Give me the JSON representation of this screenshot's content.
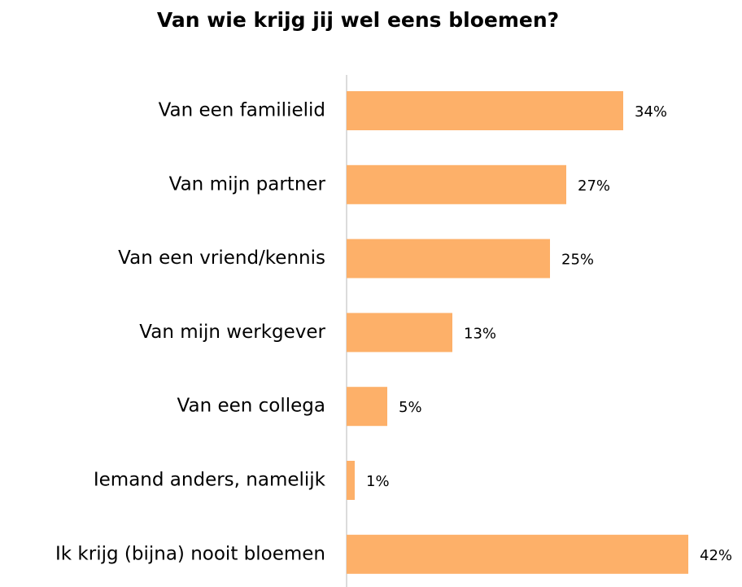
{
  "chart_data": {
    "type": "bar",
    "orientation": "horizontal",
    "title": "Van wie krijg jij wel eens bloemen?",
    "categories": [
      "Van een familielid",
      "Van mijn partner",
      "Van een vriend/kennis",
      "Van mijn werkgever",
      "Van een collega",
      "Iemand anders, namelijk",
      "Ik krijg (bijna) nooit bloemen"
    ],
    "values": [
      34,
      27,
      25,
      13,
      5,
      1,
      42
    ],
    "value_labels": [
      "34%",
      "27%",
      "25%",
      "13%",
      "5%",
      "1%",
      "42%"
    ],
    "color": "#fdb069"
  }
}
